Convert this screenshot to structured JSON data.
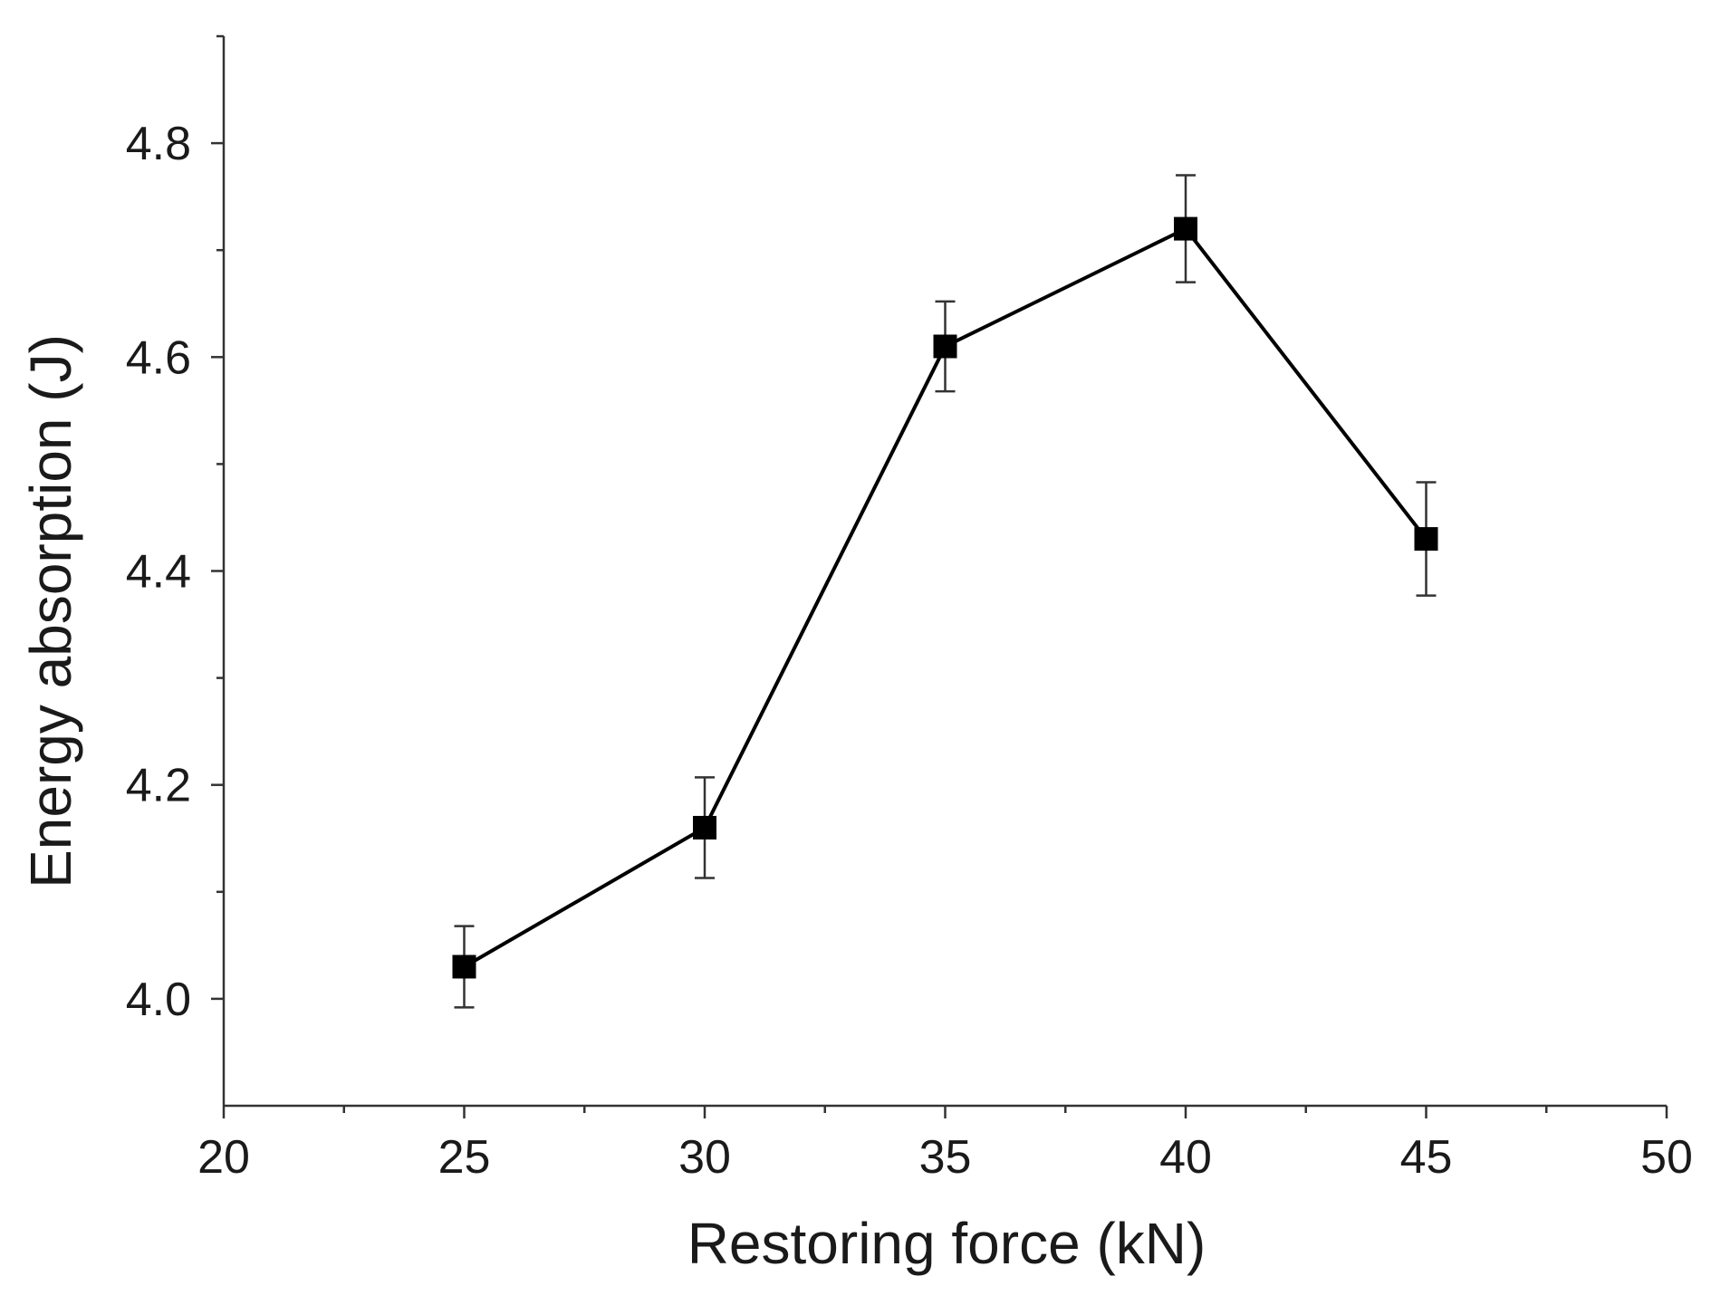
{
  "chart_data": {
    "type": "line",
    "title": "",
    "xlabel": "Restoring force (kN)",
    "ylabel": "Energy absorption (J)",
    "xlim": [
      20,
      50
    ],
    "ylim": [
      3.9,
      4.9
    ],
    "x_major_ticks": [
      20,
      25,
      30,
      35,
      40,
      45,
      50
    ],
    "x_tick_labels": [
      "20",
      "25",
      "30",
      "35",
      "40",
      "45",
      "50"
    ],
    "x_minor_ticks": [
      22.5,
      27.5,
      32.5,
      37.5,
      42.5,
      47.5
    ],
    "y_major_ticks": [
      4.0,
      4.2,
      4.4,
      4.6,
      4.8
    ],
    "y_tick_labels": [
      "4.0",
      "4.2",
      "4.4",
      "4.6",
      "4.8"
    ],
    "y_minor_ticks": [
      4.1,
      4.3,
      4.5,
      4.7
    ],
    "grid": false,
    "series": [
      {
        "name": "Energy absorption",
        "marker": "square",
        "color": "#000000",
        "x": [
          25,
          30,
          35,
          40,
          45
        ],
        "y": [
          4.03,
          4.16,
          4.61,
          4.72,
          4.43
        ],
        "error": [
          0.038,
          0.047,
          0.042,
          0.05,
          0.053
        ]
      }
    ]
  }
}
